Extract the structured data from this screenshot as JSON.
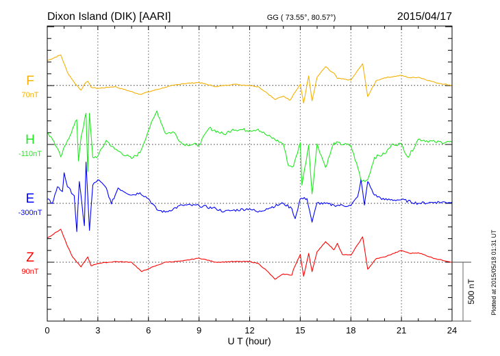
{
  "header": {
    "title": "Dixon Island (DIK)  [AARI]",
    "coords": "GG ( 73.55°,  80.57°)",
    "date": "2015/04/17"
  },
  "footer": {
    "plotted": "Plotted at 2015/05/18 01:31 UT"
  },
  "chart_data": {
    "type": "line",
    "title": "Dixon Island (DIK)  [AARI]",
    "xlabel": "U T (hour)",
    "xlim": [
      0,
      24
    ],
    "xticks": [
      "0",
      "3",
      "6",
      "9",
      "12",
      "15",
      "18",
      "21",
      "24"
    ],
    "scale_bar_label": "500 nT",
    "scale_bar_nT": 500,
    "grid": "dotted at 3-hour intervals and series baselines",
    "series": [
      {
        "name": "F",
        "baseline_label": "70nT",
        "color": "#f5b000",
        "noise": 4,
        "points": [
          [
            0,
            210
          ],
          [
            0.8,
            260
          ],
          [
            1.2,
            110
          ],
          [
            1.6,
            25
          ],
          [
            2.0,
            -40
          ],
          [
            2.2,
            10
          ],
          [
            2.4,
            35
          ],
          [
            2.6,
            -15
          ],
          [
            3,
            -25
          ],
          [
            4,
            -10
          ],
          [
            5.5,
            -75
          ],
          [
            6,
            -55
          ],
          [
            7,
            -15
          ],
          [
            8,
            15
          ],
          [
            9,
            25
          ],
          [
            10,
            -10
          ],
          [
            11,
            10
          ],
          [
            12,
            0
          ],
          [
            12.5,
            -10
          ],
          [
            13,
            -60
          ],
          [
            13.5,
            -120
          ],
          [
            14,
            -90
          ],
          [
            14.4,
            -125
          ],
          [
            14.6,
            -75
          ],
          [
            15,
            10
          ],
          [
            15.2,
            -150
          ],
          [
            15.5,
            80
          ],
          [
            15.7,
            -130
          ],
          [
            16,
            70
          ],
          [
            16.5,
            160
          ],
          [
            16.8,
            120
          ],
          [
            17,
            105
          ],
          [
            17.2,
            60
          ],
          [
            18,
            45
          ],
          [
            18.7,
            185
          ],
          [
            19,
            -95
          ],
          [
            19.5,
            40
          ],
          [
            20,
            65
          ],
          [
            21,
            85
          ],
          [
            21.5,
            65
          ],
          [
            22,
            70
          ],
          [
            23,
            25
          ],
          [
            24,
            0
          ]
        ]
      },
      {
        "name": "H",
        "baseline_label": "-110nT",
        "color": "#1ee81e",
        "noise": 14,
        "points": [
          [
            0,
            105
          ],
          [
            0.4,
            25
          ],
          [
            0.8,
            -105
          ],
          [
            1.2,
            35
          ],
          [
            1.75,
            210
          ],
          [
            1.85,
            -140
          ],
          [
            2.0,
            60
          ],
          [
            2.3,
            265
          ],
          [
            2.4,
            -230
          ],
          [
            2.5,
            265
          ],
          [
            2.7,
            -110
          ],
          [
            3,
            -100
          ],
          [
            3.5,
            35
          ],
          [
            4,
            -40
          ],
          [
            5,
            -120
          ],
          [
            5.5,
            -70
          ],
          [
            6,
            120
          ],
          [
            6.5,
            285
          ],
          [
            7,
            95
          ],
          [
            7.5,
            105
          ],
          [
            8,
            5
          ],
          [
            9,
            -5
          ],
          [
            9.6,
            140
          ],
          [
            10.5,
            85
          ],
          [
            11,
            130
          ],
          [
            12,
            120
          ],
          [
            12.5,
            130
          ],
          [
            13,
            80
          ],
          [
            14,
            5
          ],
          [
            14.3,
            -180
          ],
          [
            14.6,
            -185
          ],
          [
            15,
            15
          ],
          [
            15.1,
            -345
          ],
          [
            15.5,
            -5
          ],
          [
            15.7,
            -420
          ],
          [
            16,
            5
          ],
          [
            16.5,
            -195
          ],
          [
            17,
            15
          ],
          [
            18,
            -10
          ],
          [
            18.5,
            -240
          ],
          [
            18.6,
            -310
          ],
          [
            19,
            -300
          ],
          [
            19.4,
            -110
          ],
          [
            20,
            -80
          ],
          [
            20.5,
            5
          ],
          [
            21,
            0
          ],
          [
            21.4,
            -110
          ],
          [
            22,
            45
          ],
          [
            23,
            20
          ],
          [
            24,
            20
          ]
        ]
      },
      {
        "name": "E",
        "baseline_label": "-300nT",
        "color": "#0000ff",
        "noise": 12,
        "points": [
          [
            0,
            35
          ],
          [
            0.3,
            0
          ],
          [
            0.6,
            140
          ],
          [
            0.9,
            100
          ],
          [
            1.0,
            260
          ],
          [
            1.2,
            140
          ],
          [
            1.6,
            65
          ],
          [
            1.75,
            -240
          ],
          [
            1.9,
            185
          ],
          [
            2.2,
            -190
          ],
          [
            2.3,
            350
          ],
          [
            2.5,
            -230
          ],
          [
            2.7,
            155
          ],
          [
            3,
            200
          ],
          [
            3.5,
            130
          ],
          [
            3.8,
            -5
          ],
          [
            4.2,
            130
          ],
          [
            5,
            70
          ],
          [
            5.5,
            90
          ],
          [
            6,
            40
          ],
          [
            6.5,
            -55
          ],
          [
            7,
            -75
          ],
          [
            8,
            -15
          ],
          [
            9,
            -20
          ],
          [
            10,
            -45
          ],
          [
            10.5,
            -70
          ],
          [
            11,
            -60
          ],
          [
            12,
            -45
          ],
          [
            12.5,
            -75
          ],
          [
            13,
            -45
          ],
          [
            14,
            0
          ],
          [
            14.5,
            -45
          ],
          [
            14.7,
            -130
          ],
          [
            15,
            40
          ],
          [
            15.4,
            40
          ],
          [
            15.7,
            -160
          ],
          [
            16,
            5
          ],
          [
            17,
            -15
          ],
          [
            18,
            -20
          ],
          [
            18.4,
            55
          ],
          [
            18.6,
            200
          ],
          [
            18.8,
            -15
          ],
          [
            19,
            185
          ],
          [
            19.4,
            70
          ],
          [
            20,
            30
          ],
          [
            21,
            30
          ],
          [
            22,
            0
          ],
          [
            23,
            10
          ],
          [
            24,
            10
          ]
        ]
      },
      {
        "name": "Z",
        "baseline_label": "90nT",
        "color": "#ff0000",
        "noise": 3,
        "points": [
          [
            0,
            205
          ],
          [
            0.8,
            280
          ],
          [
            1.2,
            135
          ],
          [
            1.5,
            45
          ],
          [
            2.0,
            -40
          ],
          [
            2.4,
            45
          ],
          [
            2.6,
            -30
          ],
          [
            3,
            -10
          ],
          [
            4,
            5
          ],
          [
            5,
            0
          ],
          [
            5.6,
            -80
          ],
          [
            6,
            -55
          ],
          [
            7,
            0
          ],
          [
            8,
            10
          ],
          [
            9,
            35
          ],
          [
            10,
            0
          ],
          [
            11,
            5
          ],
          [
            12,
            5
          ],
          [
            12.5,
            -10
          ],
          [
            13,
            -70
          ],
          [
            13.5,
            -145
          ],
          [
            14,
            -100
          ],
          [
            14.5,
            -110
          ],
          [
            14.6,
            -60
          ],
          [
            15,
            65
          ],
          [
            15.2,
            -120
          ],
          [
            15.5,
            75
          ],
          [
            15.7,
            -80
          ],
          [
            16,
            90
          ],
          [
            16.5,
            175
          ],
          [
            17,
            105
          ],
          [
            17.2,
            160
          ],
          [
            17.5,
            65
          ],
          [
            18,
            60
          ],
          [
            18.7,
            215
          ],
          [
            19,
            -60
          ],
          [
            19.5,
            30
          ],
          [
            20,
            45
          ],
          [
            21,
            100
          ],
          [
            21.5,
            75
          ],
          [
            22,
            80
          ],
          [
            23,
            30
          ],
          [
            24,
            0
          ]
        ]
      }
    ]
  }
}
